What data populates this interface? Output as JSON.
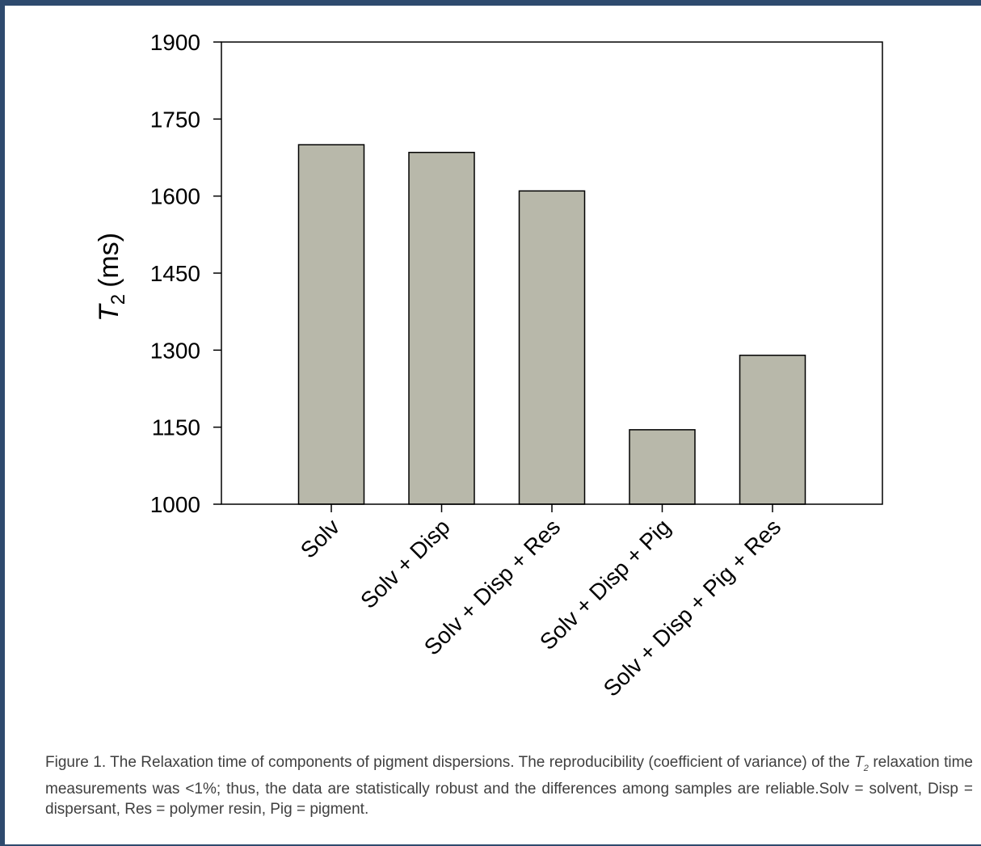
{
  "chart_data": {
    "type": "bar",
    "categories": [
      "Solv",
      "Solv + Disp",
      "Solv + Disp + Res",
      "Solv + Disp + Pig",
      "Solv + Disp + Pig + Res"
    ],
    "values": [
      1700,
      1685,
      1610,
      1145,
      1290
    ],
    "ylabel_main": "T",
    "ylabel_sub": "2",
    "ylabel_unit": "(ms)",
    "ylim": [
      1000,
      1900
    ],
    "yticks": [
      1000,
      1150,
      1300,
      1450,
      1600,
      1750,
      1900
    ],
    "bar_color": "#b8b8aa",
    "grid": false
  },
  "caption": {
    "part1": "Figure 1. The Relaxation time of components of pigment dispersions. The reproducibility (coefficient of variance) of the ",
    "t_symbol": "T",
    "t_sub": "2",
    "part2": " relaxation time measurements was <1%; thus, the data are statistically robust and the differences among samples are reliable.Solv = solvent, Disp = dispersant, Res = polymer resin, Pig = pigment."
  },
  "colors": {
    "frame": "#2e4a6e",
    "caption_text": "#3f3f3f"
  }
}
